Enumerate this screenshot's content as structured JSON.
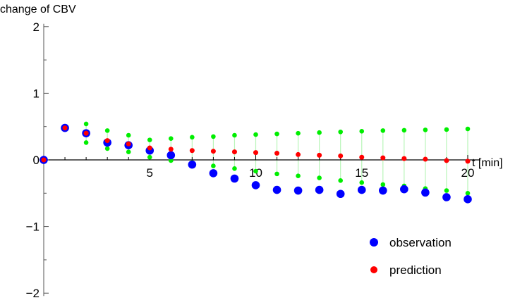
{
  "chart_data": {
    "type": "scatter",
    "ylabel": "change of CBV",
    "xlabel": "t [min]",
    "xlim": [
      0,
      20.5
    ],
    "ylim": [
      -2,
      2
    ],
    "xticks": [
      5,
      10,
      15,
      20
    ],
    "yticks": [
      2,
      1,
      0,
      -1,
      -2
    ],
    "ytick_labels": [
      "2",
      "1",
      "0",
      "−1",
      "−2"
    ],
    "legend_position": "bottom-right",
    "grid": false,
    "x": [
      0,
      1,
      2,
      3,
      4,
      5,
      6,
      7,
      8,
      9,
      10,
      11,
      12,
      13,
      14,
      15,
      16,
      17,
      18,
      19,
      20
    ],
    "series": [
      {
        "name": "observation",
        "color": "#0000ff",
        "values": [
          0,
          0.48,
          0.4,
          0.26,
          0.22,
          0.14,
          0.07,
          -0.07,
          -0.2,
          -0.28,
          -0.38,
          -0.45,
          -0.46,
          -0.45,
          -0.51,
          -0.45,
          -0.46,
          -0.44,
          -0.49,
          -0.56,
          -0.59
        ]
      },
      {
        "name": "prediction",
        "color": "#ff0000",
        "values": [
          0,
          0.48,
          0.4,
          0.29,
          0.24,
          0.18,
          0.16,
          0.14,
          0.13,
          0.12,
          0.11,
          0.1,
          0.08,
          0.07,
          0.06,
          0.04,
          0.03,
          0.02,
          0.01,
          -0.01,
          -0.02
        ]
      }
    ],
    "prediction_band": {
      "color": "#00ee00",
      "x": [
        2,
        3,
        4,
        5,
        6,
        7,
        8,
        9,
        10,
        11,
        12,
        13,
        14,
        15,
        16,
        17,
        18,
        19,
        20
      ],
      "upper": [
        0.54,
        0.44,
        0.37,
        0.3,
        0.32,
        0.34,
        0.35,
        0.37,
        0.38,
        0.39,
        0.4,
        0.41,
        0.42,
        0.43,
        0.44,
        0.445,
        0.45,
        0.455,
        0.465
      ],
      "lower": [
        0.26,
        0.17,
        0.12,
        0.04,
        -0.01,
        -0.04,
        -0.09,
        -0.13,
        -0.17,
        -0.21,
        -0.24,
        -0.27,
        -0.31,
        -0.34,
        -0.37,
        -0.39,
        -0.43,
        -0.46,
        -0.5
      ]
    }
  }
}
